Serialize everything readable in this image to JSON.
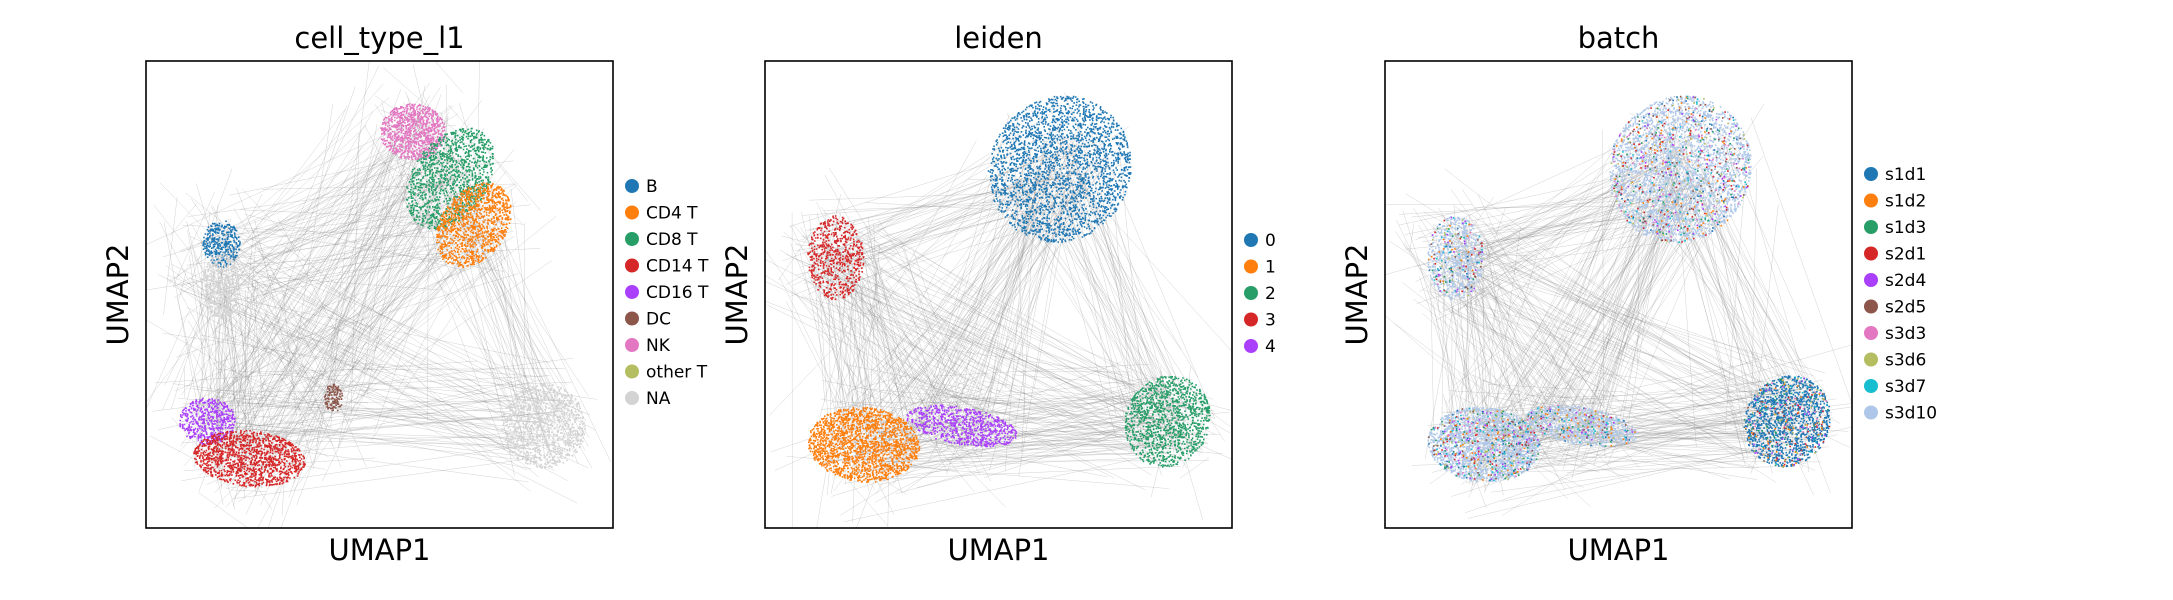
{
  "chart_data": [
    {
      "type": "scatter",
      "title": "cell_type_l1",
      "xlabel": "UMAP1",
      "ylabel": "UMAP2",
      "xticks": false,
      "yticks": false,
      "grid": false,
      "legend_placement": "right",
      "legend": [
        {
          "label": "B",
          "color": "#1f77b4"
        },
        {
          "label": "CD4 T",
          "color": "#ff7f0e"
        },
        {
          "label": "CD8 T",
          "color": "#279e68"
        },
        {
          "label": "CD14 T",
          "color": "#d62728"
        },
        {
          "label": "CD16 T",
          "color": "#aa40fc"
        },
        {
          "label": "DC",
          "color": "#8c564b"
        },
        {
          "label": "NK",
          "color": "#e377c2"
        },
        {
          "label": "other T",
          "color": "#b5bd61"
        },
        {
          "label": "NA",
          "color": "#d3d3d3"
        }
      ],
      "clusters": [
        {
          "label": "NK",
          "x": 0.57,
          "y": 0.85
        },
        {
          "label": "CD8 T",
          "x": 0.65,
          "y": 0.75
        },
        {
          "label": "CD4 T",
          "x": 0.7,
          "y": 0.65
        },
        {
          "label": "B",
          "x": 0.16,
          "y": 0.61
        },
        {
          "label": "NA",
          "x": 0.16,
          "y": 0.52
        },
        {
          "label": "CD16 T",
          "x": 0.13,
          "y": 0.23
        },
        {
          "label": "CD14 T",
          "x": 0.22,
          "y": 0.15
        },
        {
          "label": "DC",
          "x": 0.4,
          "y": 0.28
        },
        {
          "label": "NA",
          "x": 0.85,
          "y": 0.22
        }
      ]
    },
    {
      "type": "scatter",
      "title": "leiden",
      "xlabel": "UMAP1",
      "ylabel": "UMAP2",
      "xticks": false,
      "yticks": false,
      "grid": false,
      "legend_placement": "right",
      "legend": [
        {
          "label": "0",
          "color": "#1f77b4"
        },
        {
          "label": "1",
          "color": "#ff7f0e"
        },
        {
          "label": "2",
          "color": "#279e68"
        },
        {
          "label": "3",
          "color": "#d62728"
        },
        {
          "label": "4",
          "color": "#aa40fc"
        }
      ],
      "clusters": [
        {
          "label": "0",
          "x": 0.63,
          "y": 0.77
        },
        {
          "label": "3",
          "x": 0.15,
          "y": 0.58
        },
        {
          "label": "1",
          "x": 0.21,
          "y": 0.18
        },
        {
          "label": "4",
          "x": 0.42,
          "y": 0.22
        },
        {
          "label": "2",
          "x": 0.86,
          "y": 0.23
        }
      ]
    },
    {
      "type": "scatter",
      "title": "batch",
      "xlabel": "UMAP1",
      "ylabel": "UMAP2",
      "xticks": false,
      "yticks": false,
      "grid": false,
      "legend_placement": "right",
      "legend": [
        {
          "label": "s1d1",
          "color": "#1f77b4"
        },
        {
          "label": "s1d2",
          "color": "#ff7f0e"
        },
        {
          "label": "s1d3",
          "color": "#279e68"
        },
        {
          "label": "s2d1",
          "color": "#d62728"
        },
        {
          "label": "s2d4",
          "color": "#aa40fc"
        },
        {
          "label": "s2d5",
          "color": "#8c564b"
        },
        {
          "label": "s3d3",
          "color": "#e377c2"
        },
        {
          "label": "s3d6",
          "color": "#b5bd61"
        },
        {
          "label": "s3d7",
          "color": "#17becf"
        },
        {
          "label": "s3d10",
          "color": "#aec7e8"
        }
      ],
      "clusters": [
        {
          "label": "s3d10",
          "x": 0.63,
          "y": 0.77
        },
        {
          "label": "s3d10",
          "x": 0.15,
          "y": 0.58
        },
        {
          "label": "s3d10",
          "x": 0.21,
          "y": 0.18
        },
        {
          "label": "s3d10",
          "x": 0.42,
          "y": 0.22
        },
        {
          "label": "s1d1",
          "x": 0.86,
          "y": 0.23
        }
      ]
    }
  ]
}
